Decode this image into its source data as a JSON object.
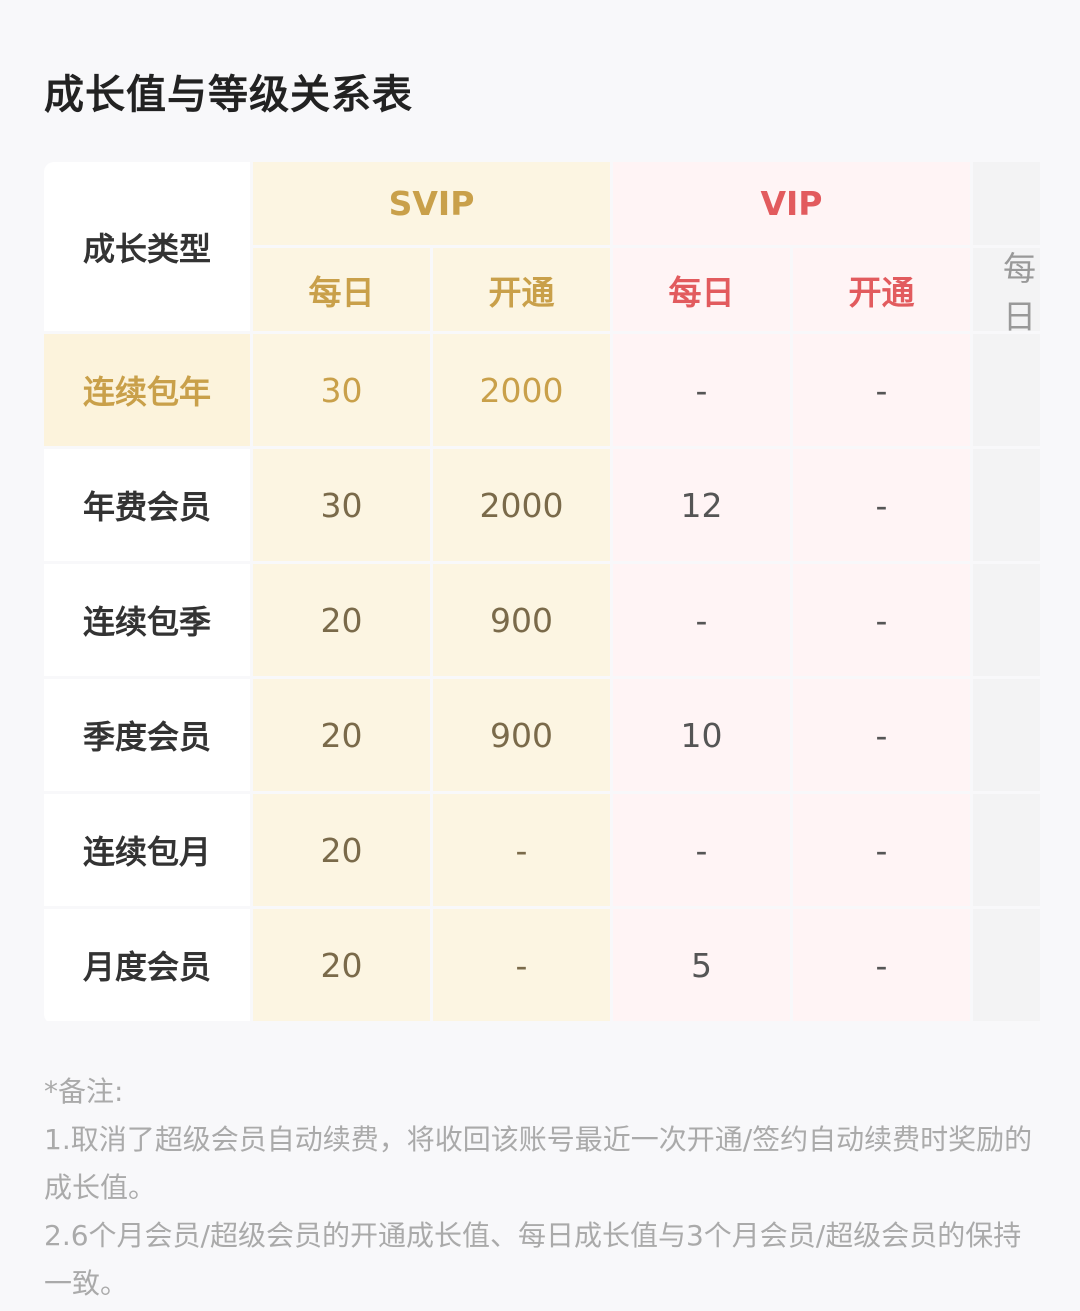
{
  "title": "成长值与等级关系表",
  "table": {
    "type_header": "成长类型",
    "groups": [
      {
        "name": "SVIP",
        "color": "#c9a04a",
        "sub": [
          "每日",
          "开通"
        ]
      },
      {
        "name": "VIP",
        "color": "#e25b5e",
        "sub": [
          "每日",
          "开通"
        ]
      },
      {
        "name": "",
        "sub": [
          "每日"
        ]
      }
    ],
    "rows": [
      {
        "label": "连续包年",
        "highlight": true,
        "values": [
          "30",
          "2000",
          "-",
          "-"
        ]
      },
      {
        "label": "年费会员",
        "values": [
          "30",
          "2000",
          "12",
          "-"
        ]
      },
      {
        "label": "连续包季",
        "values": [
          "20",
          "900",
          "-",
          "-"
        ]
      },
      {
        "label": "季度会员",
        "values": [
          "20",
          "900",
          "10",
          "-"
        ]
      },
      {
        "label": "连续包月",
        "values": [
          "20",
          "-",
          "-",
          "-"
        ]
      },
      {
        "label": "月度会员",
        "values": [
          "20",
          "-",
          "5",
          "-"
        ]
      }
    ]
  },
  "notes": {
    "heading": "*备注:",
    "items": [
      "1.取消了超级会员自动续费，将收回该账号最近一次开通/签约自动续费时奖励的成长值。",
      "2.6个月会员/超级会员的开通成长值、每日成长值与3个月会员/超级会员的保持一致。"
    ]
  }
}
